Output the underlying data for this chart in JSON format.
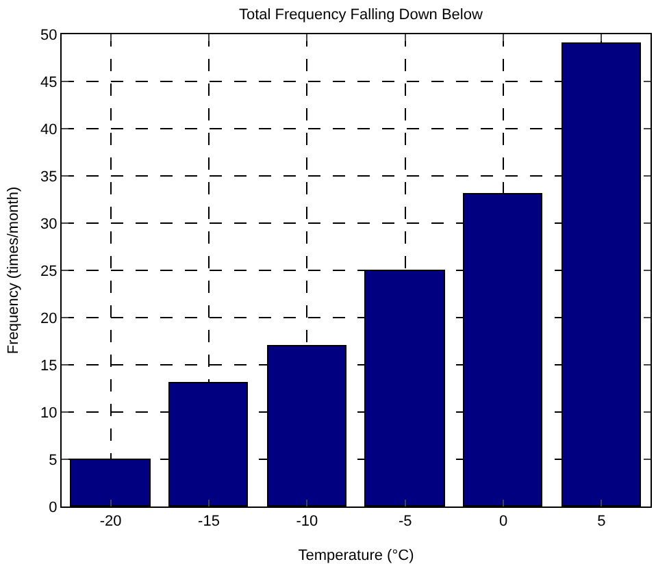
{
  "chart_data": {
    "type": "bar",
    "title": "Total Frequency Falling Down Below",
    "xlabel": "Temperature (°C)",
    "ylabel": "Frequency (times/month)",
    "x": [
      -20,
      -15,
      -10,
      -5,
      0,
      5
    ],
    "values": [
      5,
      13,
      17,
      25,
      33,
      49
    ],
    "color": "#000080",
    "xlim": [
      -22.5,
      7.5
    ],
    "xticks": [
      -20,
      -15,
      -10,
      -5,
      0,
      5
    ],
    "ylim": [
      0,
      50
    ],
    "yticks": [
      0,
      5,
      10,
      15,
      20,
      25,
      30,
      35,
      40,
      45,
      50
    ],
    "grid": true,
    "legend": false
  }
}
